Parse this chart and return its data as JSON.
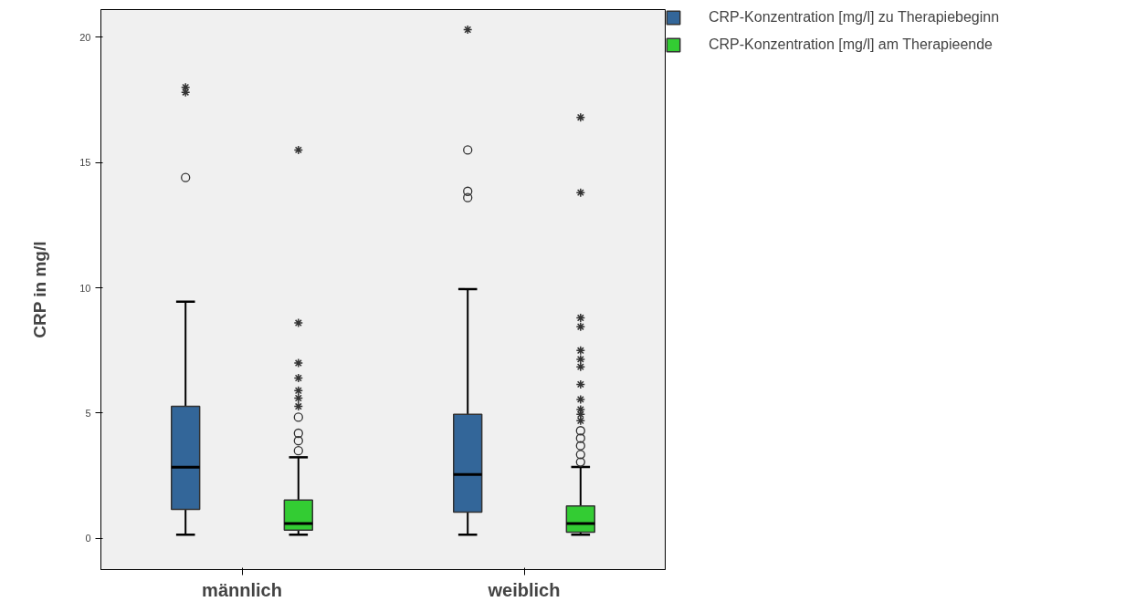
{
  "chart_data": {
    "type": "box",
    "ylabel": "CRP in mg/l",
    "categories": [
      "männlich",
      "weiblich"
    ],
    "ylim": [
      -1.24,
      21.1
    ],
    "yticks": [
      0,
      5,
      10,
      15,
      20
    ],
    "grid": false,
    "legend": "top right",
    "series": [
      {
        "name": "CRP-Konzentration [mg/l] zu Therapiebeginn",
        "color": "#336699",
        "boxes": [
          {
            "low": 0.15,
            "q1": 1.16,
            "median": 2.84,
            "q3": 5.27,
            "high": 9.45,
            "outliers": [
              14.4,
              17.8,
              18.0
            ]
          },
          {
            "low": 0.15,
            "q1": 1.05,
            "median": 2.55,
            "q3": 4.95,
            "high": 9.95,
            "outliers": [
              13.6,
              13.85,
              15.5,
              20.3
            ]
          }
        ]
      },
      {
        "name": "CRP-Konzentration [mg/l] am Therapieende",
        "color": "#33cc33",
        "boxes": [
          {
            "low": 0.15,
            "q1": 0.33,
            "median": 0.6,
            "q3": 1.53,
            "high": 3.24,
            "outliers": [
              3.5,
              3.9,
              4.2,
              4.84,
              5.27,
              5.6,
              5.9,
              6.4,
              7.0,
              8.6,
              15.5
            ]
          },
          {
            "low": 0.15,
            "q1": 0.25,
            "median": 0.6,
            "q3": 1.3,
            "high": 2.85,
            "outliers": [
              3.05,
              3.35,
              3.7,
              4.0,
              4.3,
              4.7,
              4.95,
              5.15,
              5.55,
              6.15,
              6.85,
              7.15,
              7.5,
              8.45,
              8.8,
              13.8,
              16.8
            ]
          }
        ]
      }
    ]
  }
}
